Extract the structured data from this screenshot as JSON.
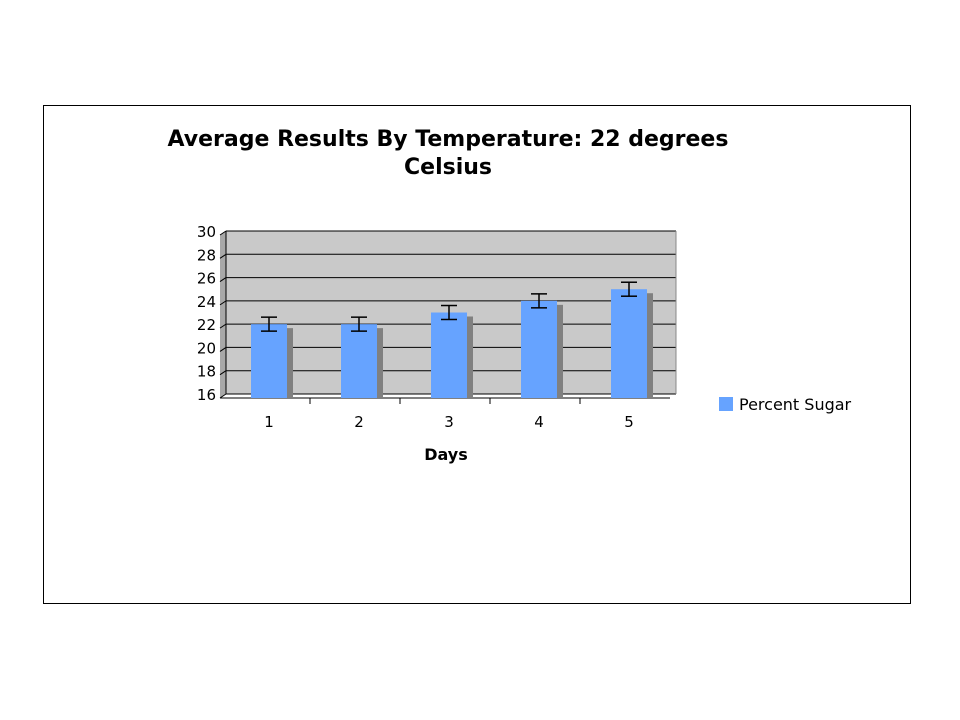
{
  "chart_data": {
    "type": "bar",
    "title_lines": [
      "Average Results By Temperature: 22 degrees",
      "Celsius"
    ],
    "xlabel": "Days",
    "ylabel": "",
    "categories": [
      "1",
      "2",
      "3",
      "4",
      "5"
    ],
    "series": [
      {
        "name": "Percent Sugar",
        "values": [
          22,
          22,
          23,
          24,
          25
        ],
        "error": [
          0.6,
          0.6,
          0.6,
          0.6,
          0.6
        ]
      }
    ],
    "ylim": [
      16,
      30
    ],
    "yticks": [
      "16",
      "18",
      "20",
      "22",
      "24",
      "26",
      "28",
      "30"
    ],
    "grid": true,
    "legend_position": "right",
    "colors": {
      "bar": "#66a3ff",
      "bar_shadow": "#808080",
      "plot_bg": "#c9c9c9",
      "gridline": "#000000"
    }
  }
}
